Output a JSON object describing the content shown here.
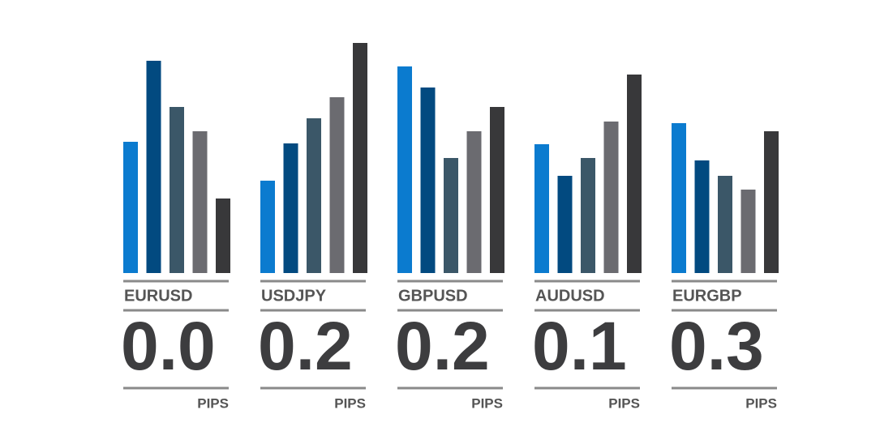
{
  "chart_data": {
    "type": "bar",
    "colors": [
      "#0b7bcf",
      "#024a80",
      "#3b5768",
      "#6b6b70",
      "#38383a"
    ],
    "unit": "PIPS",
    "groups": [
      {
        "label": "EURUSD",
        "spread": "0.0",
        "values": [
          162,
          262,
          205,
          175,
          92
        ]
      },
      {
        "label": "USDJPY",
        "spread": "0.2",
        "values": [
          114,
          160,
          191,
          217,
          284
        ]
      },
      {
        "label": "GBPUSD",
        "spread": "0.2",
        "values": [
          255,
          229,
          142,
          175,
          205
        ]
      },
      {
        "label": "AUDUSD",
        "spread": "0.1",
        "values": [
          159,
          120,
          142,
          187,
          245
        ]
      },
      {
        "label": "EURGBP",
        "spread": "0.3",
        "values": [
          185,
          139,
          120,
          103,
          175
        ]
      }
    ]
  }
}
